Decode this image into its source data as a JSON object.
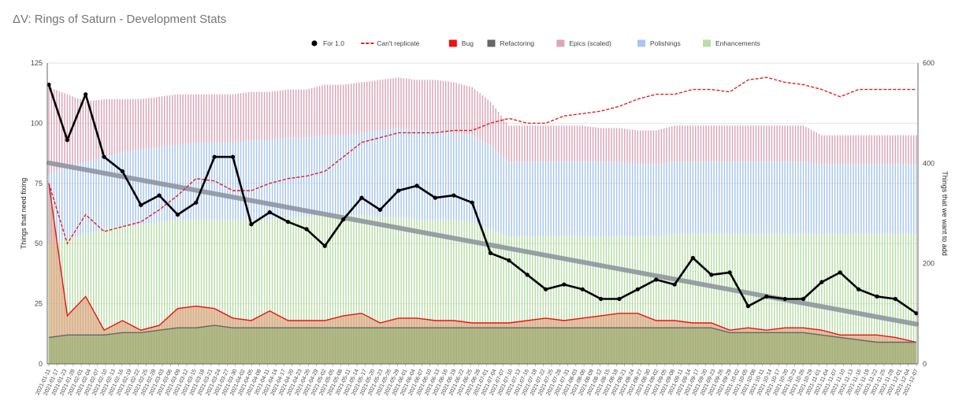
{
  "page": {
    "title": "ΔV: Rings of Saturn - Development Stats"
  },
  "colors": {
    "for10": "#000000",
    "cant_replicate": "#dd2222",
    "bug": "#ee1111",
    "refactoring": "#666666",
    "epics": "#d9a7b7",
    "polishings": "#a9c6ee",
    "enhancements": "#b9dda9",
    "trend": "#8a909c"
  },
  "chart_data": {
    "type": "bar",
    "title": "ΔV: Rings of Saturn - Development Stats",
    "ylabel_left": "Things that need fixing",
    "ylabel_right": "Things that we want to add",
    "ylim_left": [
      0,
      125
    ],
    "ylim_right": [
      0,
      600
    ],
    "yticks_left": [
      0,
      25,
      50,
      75,
      100,
      125
    ],
    "yticks_right": [
      0,
      200,
      400,
      600
    ],
    "grid": true,
    "legend_position": "top-center",
    "legend": [
      {
        "key": "for10",
        "label": "For 1.0",
        "style": "line-dot"
      },
      {
        "key": "cant_replicate",
        "label": "Can't replicate",
        "style": "dashed"
      },
      {
        "key": "bug",
        "label": "Bug",
        "style": "box"
      },
      {
        "key": "refactoring",
        "label": "Refactoring",
        "style": "box"
      },
      {
        "key": "epics",
        "label": "Epics (scaled)",
        "style": "box"
      },
      {
        "key": "polishings",
        "label": "Polishings",
        "style": "box"
      },
      {
        "key": "enhancements",
        "label": "Enhancements",
        "style": "box"
      }
    ],
    "x_tick_labels": [
      "2021-01-11",
      "2021-01-17",
      "2021-01-23",
      "2021-01-28",
      "2021-02-01",
      "2021-02-04",
      "2021-02-07",
      "2021-02-10",
      "2021-02-13",
      "2021-02-16",
      "2021-02-19",
      "2021-02-22",
      "2021-02-25",
      "2021-02-28",
      "2021-03-03",
      "2021-03-06",
      "2021-03-09",
      "2021-03-12",
      "2021-03-15",
      "2021-03-18",
      "2021-03-21",
      "2021-03-24",
      "2021-03-27",
      "2021-03-30",
      "2021-04-02",
      "2021-04-05",
      "2021-04-08",
      "2021-04-11",
      "2021-04-14",
      "2021-04-17",
      "2021-04-20",
      "2021-04-23",
      "2021-04-26",
      "2021-04-29",
      "2021-05-02",
      "2021-05-05",
      "2021-05-08",
      "2021-05-11",
      "2021-05-14",
      "2021-05-17",
      "2021-05-20",
      "2021-05-23",
      "2021-05-26",
      "2021-05-29",
      "2021-06-01",
      "2021-06-04",
      "2021-06-07",
      "2021-06-10",
      "2021-06-13",
      "2021-06-16",
      "2021-06-19",
      "2021-06-22",
      "2021-06-25",
      "2021-06-28",
      "2021-07-01",
      "2021-07-04",
      "2021-07-07",
      "2021-07-10",
      "2021-07-13",
      "2021-07-16",
      "2021-07-19",
      "2021-07-22",
      "2021-07-25",
      "2021-07-28",
      "2021-07-31",
      "2021-08-03",
      "2021-08-06",
      "2021-08-09",
      "2021-08-12",
      "2021-08-15",
      "2021-08-18",
      "2021-08-21",
      "2021-08-24",
      "2021-08-27",
      "2021-08-30",
      "2021-09-02",
      "2021-09-05",
      "2021-09-08",
      "2021-09-11",
      "2021-09-14",
      "2021-09-17",
      "2021-09-20",
      "2021-09-23",
      "2021-09-26",
      "2021-09-29",
      "2021-10-02",
      "2021-10-05",
      "2021-10-08",
      "2021-10-11",
      "2021-10-14",
      "2021-10-17",
      "2021-10-20",
      "2021-10-23",
      "2021-10-26",
      "2021-10-29",
      "2021-11-01",
      "2021-11-04",
      "2021-11-07",
      "2021-11-10",
      "2021-11-13",
      "2021-11-16",
      "2021-11-19",
      "2021-11-22",
      "2021-11-25",
      "2021-11-28",
      "2021-12-01",
      "2021-12-04",
      "2021-12-07"
    ],
    "sample_dates": [
      "2021-01-11",
      "2021-01-18",
      "2021-01-25",
      "2021-02-01",
      "2021-02-08",
      "2021-02-15",
      "2021-02-22",
      "2021-03-01",
      "2021-03-08",
      "2021-03-15",
      "2021-03-22",
      "2021-03-29",
      "2021-04-05",
      "2021-04-12",
      "2021-04-19",
      "2021-04-26",
      "2021-05-03",
      "2021-05-10",
      "2021-05-17",
      "2021-05-24",
      "2021-05-31",
      "2021-06-07",
      "2021-06-14",
      "2021-06-21",
      "2021-06-28",
      "2021-07-05",
      "2021-07-12",
      "2021-07-19",
      "2021-07-26",
      "2021-08-02",
      "2021-08-09",
      "2021-08-16",
      "2021-08-23",
      "2021-08-30",
      "2021-09-06",
      "2021-09-13",
      "2021-09-20",
      "2021-09-27",
      "2021-10-04",
      "2021-10-11",
      "2021-10-18",
      "2021-10-25",
      "2021-11-01",
      "2021-11-08",
      "2021-11-15",
      "2021-11-22",
      "2021-11-29",
      "2021-12-07"
    ],
    "series": [
      {
        "key": "for10",
        "name": "For 1.0",
        "axis": "left",
        "values": [
          116,
          93,
          112,
          86,
          80,
          66,
          70,
          62,
          67,
          86,
          86,
          58,
          63,
          59,
          56,
          49,
          60,
          69,
          64,
          72,
          74,
          69,
          70,
          67,
          46,
          43,
          37,
          31,
          33,
          31,
          27,
          27,
          31,
          35,
          33,
          44,
          37,
          38,
          24,
          28,
          27,
          27,
          34,
          38,
          31,
          28,
          27,
          21
        ]
      },
      {
        "key": "cant_replicate",
        "name": "Can't replicate",
        "axis": "left",
        "values": [
          75,
          50,
          62,
          55,
          57,
          59,
          64,
          70,
          77,
          76,
          72,
          72,
          75,
          77,
          78,
          80,
          86,
          92,
          94,
          96,
          96,
          96,
          97,
          97,
          100,
          102,
          100,
          100,
          103,
          104,
          105,
          107,
          110,
          112,
          112,
          114,
          114,
          113,
          118,
          119,
          117,
          116,
          114,
          111,
          114,
          114,
          114,
          114
        ]
      },
      {
        "key": "enhancements",
        "name": "Enhancements",
        "axis": "left",
        "values": [
          50,
          52,
          54,
          56,
          57,
          58,
          59,
          60,
          60,
          60,
          60,
          60,
          60,
          61,
          61,
          62,
          62,
          62,
          61,
          61,
          60,
          60,
          60,
          59,
          56,
          53,
          53,
          53,
          53,
          53,
          53,
          53,
          53,
          53,
          54,
          54,
          54,
          54,
          54,
          54,
          54,
          54,
          54,
          54,
          54,
          54,
          54,
          54
        ]
      },
      {
        "key": "polishings",
        "name": "Polishings",
        "axis": "left",
        "values": [
          29,
          30,
          30,
          30,
          31,
          31,
          31,
          31,
          32,
          32,
          32,
          33,
          33,
          33,
          33,
          33,
          33,
          34,
          36,
          37,
          37,
          37,
          36,
          36,
          35,
          31,
          31,
          31,
          31,
          31,
          31,
          31,
          30,
          30,
          30,
          30,
          30,
          30,
          30,
          30,
          30,
          30,
          29,
          29,
          29,
          29,
          29,
          29
        ]
      },
      {
        "key": "epics",
        "name": "Epics (scaled)",
        "axis": "left",
        "values": [
          36,
          30,
          25,
          24,
          22,
          21,
          21,
          21,
          20,
          20,
          20,
          20,
          20,
          20,
          20,
          21,
          21,
          21,
          21,
          21,
          21,
          21,
          21,
          20,
          18,
          15,
          15,
          15,
          15,
          15,
          14,
          14,
          14,
          14,
          15,
          15,
          15,
          15,
          15,
          15,
          15,
          15,
          12,
          12,
          12,
          12,
          12,
          12
        ]
      },
      {
        "key": "bug",
        "name": "Bug",
        "axis": "left",
        "values": [
          75,
          20,
          28,
          14,
          18,
          14,
          16,
          23,
          24,
          23,
          19,
          18,
          22,
          18,
          18,
          18,
          20,
          21,
          17,
          19,
          19,
          18,
          18,
          17,
          17,
          17,
          18,
          19,
          18,
          19,
          20,
          21,
          21,
          18,
          18,
          17,
          17,
          14,
          15,
          14,
          15,
          15,
          14,
          12,
          12,
          12,
          11,
          9
        ]
      },
      {
        "key": "refactoring",
        "name": "Refactoring",
        "axis": "left",
        "values": [
          11,
          12,
          12,
          12,
          13,
          13,
          14,
          15,
          15,
          16,
          15,
          15,
          15,
          15,
          15,
          15,
          15,
          15,
          15,
          15,
          15,
          15,
          15,
          15,
          15,
          15,
          15,
          15,
          15,
          15,
          15,
          15,
          15,
          15,
          15,
          15,
          15,
          13,
          13,
          13,
          13,
          13,
          12,
          11,
          10,
          9,
          9,
          9
        ]
      }
    ],
    "trend_line": {
      "name": "For 1.0 trend",
      "start": [
        "2021-01-11",
        83.5
      ],
      "end": [
        "2021-12-07",
        16.5
      ]
    }
  }
}
